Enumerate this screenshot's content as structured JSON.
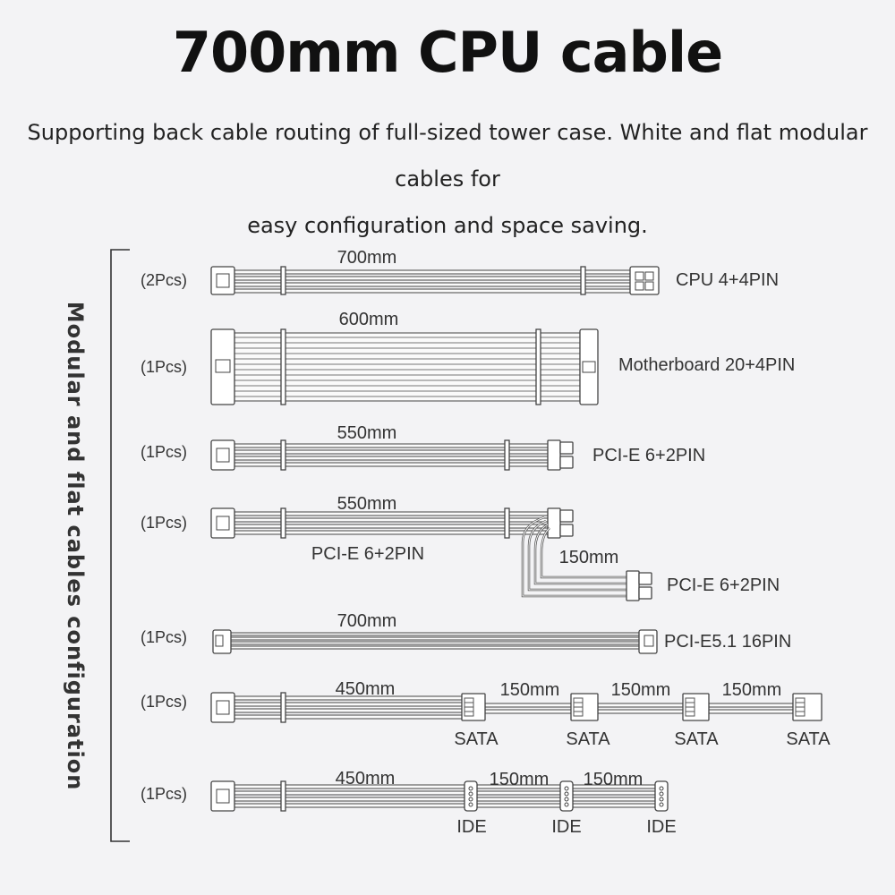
{
  "title": "700mm CPU cable",
  "subtitle_line1": "Supporting back cable routing of full-sized tower case. White and flat modular cables for",
  "subtitle_line2": "easy configuration and space saving.",
  "side_label": "Modular and flat cables configuration",
  "cables": [
    {
      "qty": "(2Pcs)",
      "length": "700mm",
      "name": "CPU 4+4PIN"
    },
    {
      "qty": "(1Pcs)",
      "length": "600mm",
      "name": "Motherboard 20+4PIN"
    },
    {
      "qty": "(1Pcs)",
      "length": "550mm",
      "name": "PCI-E 6+2PIN"
    },
    {
      "qty": "(1Pcs)",
      "length": "550mm",
      "name": "PCI-E 6+2PIN",
      "branch_length": "150mm",
      "branch_name": "PCI-E 6+2PIN"
    },
    {
      "qty": "(1Pcs)",
      "length": "700mm",
      "name": "PCI-E5.1 16PIN"
    },
    {
      "qty": "(1Pcs)",
      "length": "450mm",
      "seg_lengths": [
        "150mm",
        "150mm",
        "150mm"
      ],
      "connector_label": "SATA"
    },
    {
      "qty": "(1Pcs)",
      "length": "450mm",
      "seg_lengths": [
        "150mm",
        "150mm"
      ],
      "connector_label": "IDE"
    }
  ]
}
